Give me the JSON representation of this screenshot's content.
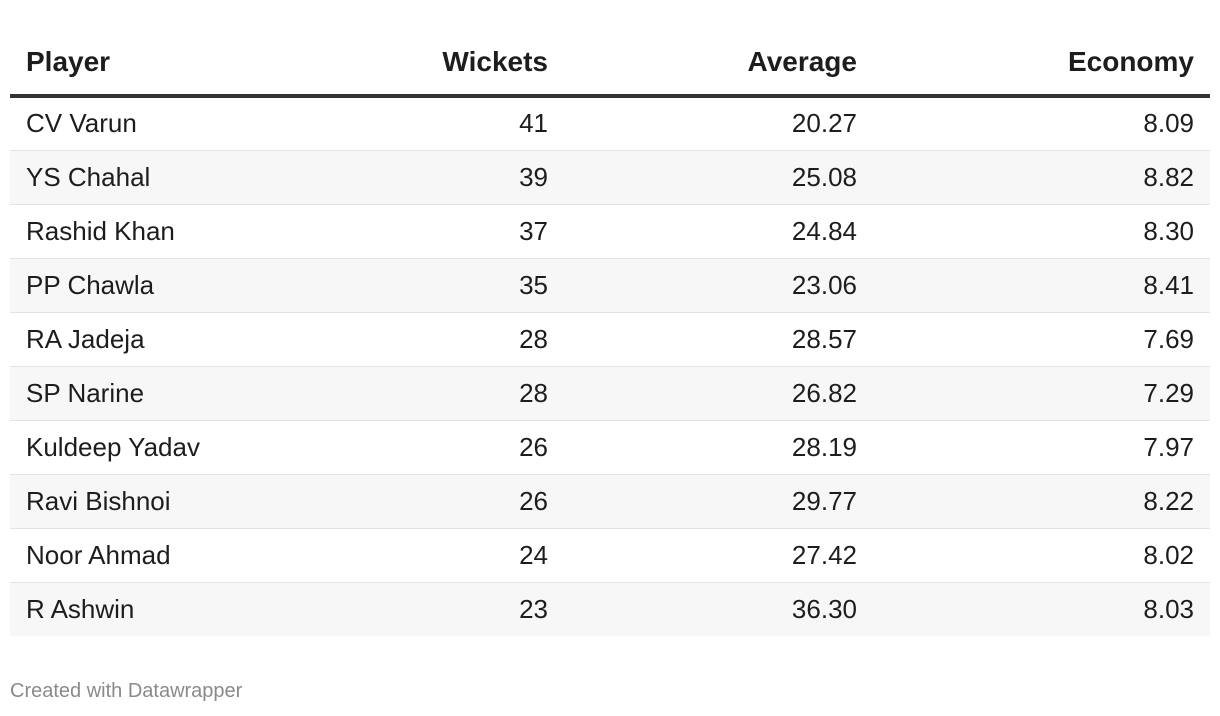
{
  "chart_data": {
    "type": "table",
    "columns": [
      "Player",
      "Wickets",
      "Average",
      "Economy"
    ],
    "rows": [
      [
        "CV Varun",
        "41",
        "20.27",
        "8.09"
      ],
      [
        "YS Chahal",
        "39",
        "25.08",
        "8.82"
      ],
      [
        "Rashid Khan",
        "37",
        "24.84",
        "8.30"
      ],
      [
        "PP Chawla",
        "35",
        "23.06",
        "8.41"
      ],
      [
        "RA Jadeja",
        "28",
        "28.57",
        "7.69"
      ],
      [
        "SP Narine",
        "28",
        "26.82",
        "7.29"
      ],
      [
        "Kuldeep Yadav",
        "26",
        "28.19",
        "7.97"
      ],
      [
        "Ravi Bishnoi",
        "26",
        "29.77",
        "8.22"
      ],
      [
        "Noor Ahmad",
        "24",
        "27.42",
        "8.02"
      ],
      [
        "R Ashwin",
        "23",
        "36.30",
        "8.03"
      ]
    ]
  },
  "footer": {
    "credit": "Created with Datawrapper"
  },
  "colors": {
    "header_rule": "#333333",
    "row_stripe": "#f7f7f7",
    "row_divider": "#e3e3e3",
    "credit_text": "#8a8a8a"
  }
}
